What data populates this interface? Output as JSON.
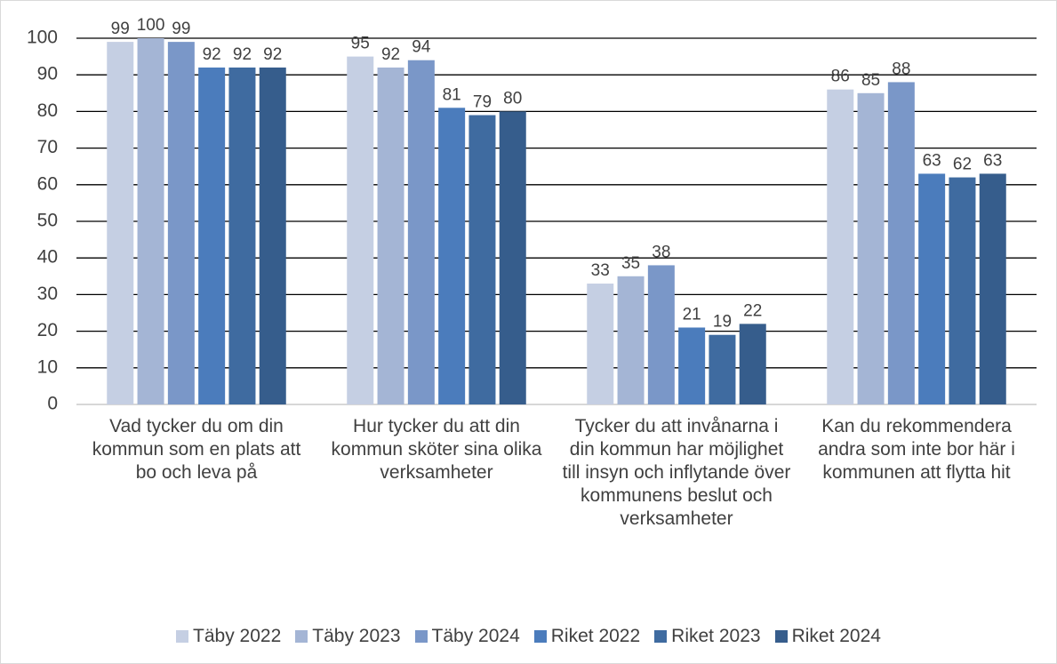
{
  "chart_data": {
    "type": "bar",
    "categories": [
      "Vad tycker du om din kommun som en plats att bo och leva på",
      "Hur tycker du att din kommun sköter sina olika verksamheter",
      "Tycker du att invånarna i din kommun har möjlighet till insyn och inflytande över kommunens beslut och verksamheter",
      "Kan du rekommendera andra som inte bor här i kommunen att flytta hit"
    ],
    "series": [
      {
        "name": "Täby 2022",
        "color": "#c5cfe3",
        "values": [
          99,
          95,
          33,
          86
        ]
      },
      {
        "name": "Täby 2023",
        "color": "#a4b5d5",
        "values": [
          100,
          92,
          35,
          85
        ]
      },
      {
        "name": "Täby 2024",
        "color": "#7a97c8",
        "values": [
          99,
          94,
          38,
          88
        ]
      },
      {
        "name": "Riket 2022",
        "color": "#4b7cbc",
        "values": [
          92,
          81,
          21,
          63
        ]
      },
      {
        "name": "Riket 2023",
        "color": "#3f6ba0",
        "values": [
          92,
          79,
          19,
          62
        ]
      },
      {
        "name": "Riket 2024",
        "color": "#365d8c",
        "values": [
          92,
          80,
          22,
          63
        ]
      }
    ],
    "ylim": [
      0,
      100
    ],
    "yticks": [
      0,
      10,
      20,
      30,
      40,
      50,
      60,
      70,
      80,
      90,
      100
    ],
    "grid": true,
    "legend": "bottom"
  }
}
